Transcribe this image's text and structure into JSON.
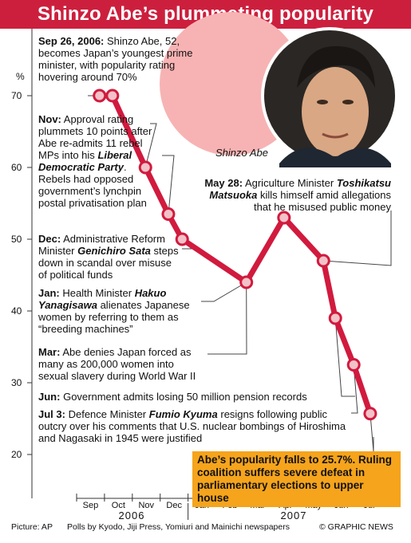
{
  "title": "Shinzo Abe’s plummeting popularity",
  "photo_caption": "Shinzo Abe",
  "unit_label": "%",
  "chart_data": {
    "type": "line",
    "categories": [
      "Sep",
      "Oct",
      "Nov",
      "Dec",
      "Jan",
      "Feb",
      "Mar",
      "Apr",
      "May",
      "Jun",
      "Jul"
    ],
    "year_labels": [
      "2006",
      "2007"
    ],
    "y_ticks": [
      "70",
      "60",
      "50",
      "40",
      "30",
      "20"
    ],
    "ylim": [
      20,
      72
    ],
    "series": [
      {
        "color": "#d11a3e",
        "points": [
          {
            "x": "2006-09-26",
            "y": 70
          },
          {
            "x": "2006-10-10",
            "y": 70
          },
          {
            "x": "2006-11-15",
            "y": 60
          },
          {
            "x": "2006-12-10",
            "y": 53.5
          },
          {
            "x": "2006-12-25",
            "y": 50
          },
          {
            "x": "2007-03-05",
            "y": 44
          },
          {
            "x": "2007-04-15",
            "y": 53
          },
          {
            "x": "2007-05-28",
            "y": 47
          },
          {
            "x": "2007-06-10",
            "y": 39
          },
          {
            "x": "2007-06-30",
            "y": 32.5
          },
          {
            "x": "2007-07-18",
            "y": 25.7
          }
        ]
      }
    ]
  },
  "annotations": {
    "sep": {
      "date": "Sep 26, 2006:",
      "text": "Shinzo Abe, 52, becomes Japan’s youngest prime minister, with popularity rating hovering around 70%"
    },
    "nov": {
      "date": "Nov:",
      "text1": "Approval rating plummets 10 points after Abe re-admits 11 rebel MPs into his",
      "name": "Liberal Democratic Party",
      "text2": ". Rebels had opposed government’s lynchpin postal privatisation plan"
    },
    "dec": {
      "date": "Dec:",
      "text1": "Administrative Reform Minister",
      "name": "Genichiro Sata",
      "text2": "steps down in scandal over misuse of political funds"
    },
    "jan": {
      "date": "Jan:",
      "text1": "Health Minister",
      "name": "Hakuo Yanagisawa",
      "text2": "alienates Japanese women by referring to them as “breeding machines”"
    },
    "mar": {
      "date": "Mar:",
      "text": "Abe denies Japan forced as many as 200,000 women into sexual slavery during World War II"
    },
    "may": {
      "date": "May 28:",
      "text1": "Agriculture Minister",
      "name": "Toshikatsu Matsuoka",
      "text2": "kills himself amid allegations that he misused public money"
    },
    "jun": {
      "date": "Jun:",
      "text": "Government admits losing 50 million pension records"
    },
    "jul": {
      "date": "Jul 3:",
      "text1": "Defence Minister",
      "name": "Fumio Kyuma",
      "text2": "resigns following public outcry over his comments that U.S. nuclear bombings of Hiroshima and Nagasaki in 1945 were justified"
    }
  },
  "highlight": "Abe’s popularity falls to 25.7%. Ruling coalition suffers severe defeat in parliamentary elections to upper house",
  "footer": {
    "picture": "Picture: AP",
    "polls": "Polls by Kyodo, Jiji Press, Yomiuri and Mainichi newspapers",
    "credit": "© GRAPHIC NEWS"
  },
  "colors": {
    "title_bg": "#cc1f3e",
    "line": "#d11a3e",
    "highlight_bg": "#f5a41c",
    "sun": "#f7b3b3"
  }
}
